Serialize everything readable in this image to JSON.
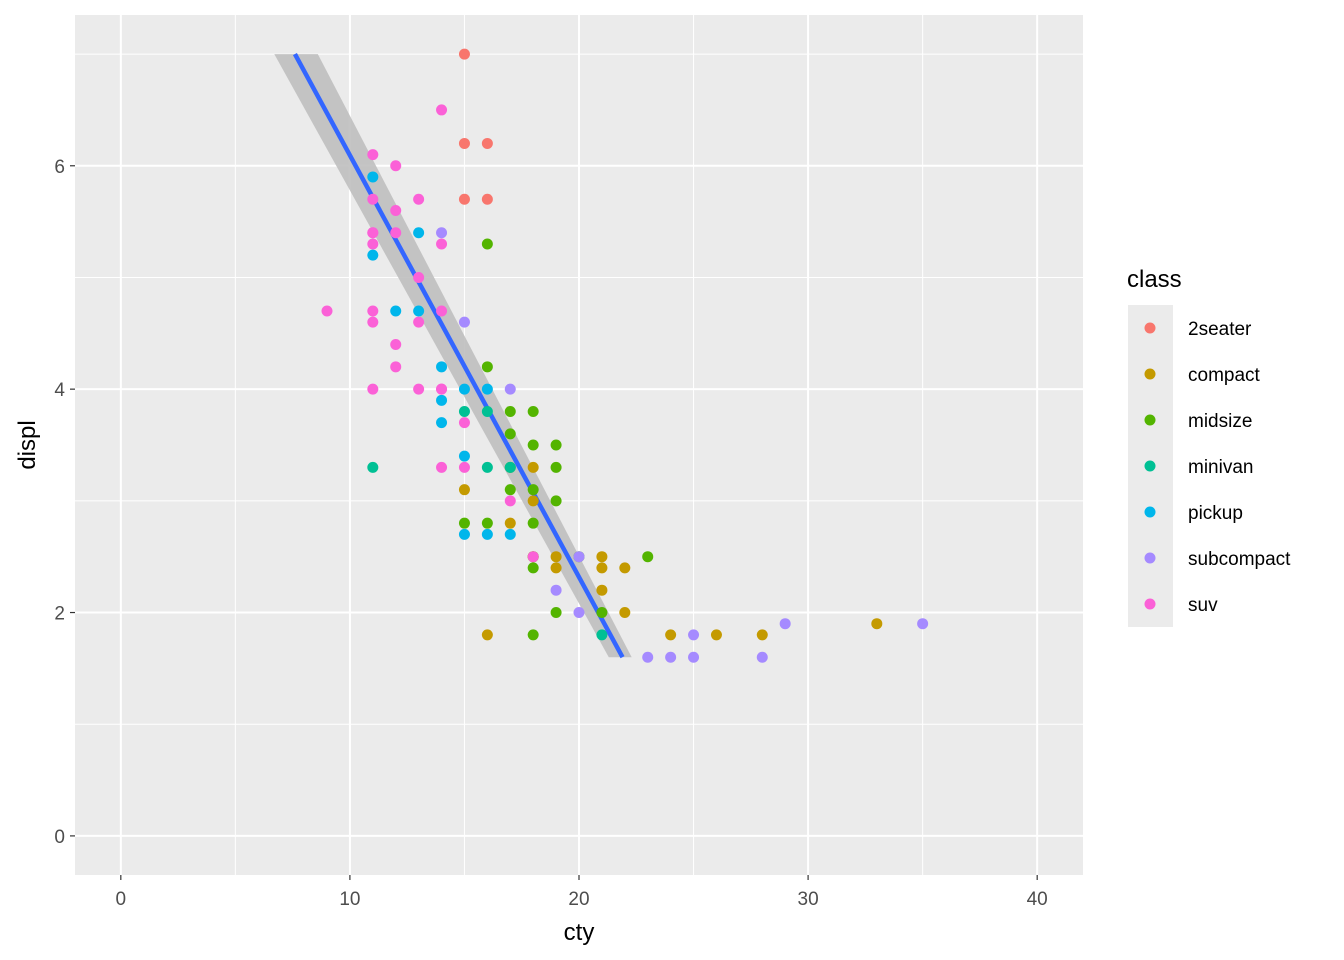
{
  "chart_data": {
    "type": "scatter",
    "xlabel": "cty",
    "ylabel": "displ",
    "xlim": [
      -2,
      42
    ],
    "ylim": [
      -0.35,
      7.35
    ],
    "x_ticks": [
      0,
      10,
      20,
      30,
      40
    ],
    "x_tick_labels": [
      "0",
      "10",
      "20",
      "30",
      "40"
    ],
    "y_ticks": [
      0,
      2,
      4,
      6
    ],
    "y_tick_labels": [
      "0",
      "2",
      "4",
      "6"
    ],
    "grid": true,
    "legend": {
      "title": "class",
      "position": "right",
      "entries": [
        "2seater",
        "compact",
        "midsize",
        "minivan",
        "pickup",
        "subcompact",
        "suv"
      ]
    },
    "series": [
      {
        "name": "2seater",
        "color": "#F8766D",
        "x": [
          15,
          15,
          16,
          15,
          16
        ],
        "y": [
          7.0,
          6.2,
          6.2,
          5.7,
          5.7
        ]
      },
      {
        "name": "compact",
        "color": "#C49A00",
        "x": [
          15,
          18,
          18,
          17,
          18,
          19,
          19,
          21,
          21,
          22,
          22,
          16,
          21,
          24,
          26,
          28,
          33
        ],
        "y": [
          3.1,
          3.0,
          3.3,
          2.8,
          2.5,
          2.5,
          2.4,
          2.5,
          2.4,
          2.4,
          2.0,
          1.8,
          2.2,
          1.8,
          1.8,
          1.8,
          1.9
        ]
      },
      {
        "name": "midsize",
        "color": "#53B400",
        "x": [
          16,
          16,
          17,
          18,
          17,
          18,
          19,
          17,
          18,
          19,
          19,
          17,
          18,
          15,
          16,
          18,
          19,
          18,
          20,
          21,
          23,
          18
        ],
        "y": [
          5.3,
          4.2,
          3.8,
          3.8,
          3.6,
          3.5,
          3.5,
          3.3,
          3.1,
          3.3,
          3.0,
          3.1,
          2.8,
          2.8,
          2.8,
          2.4,
          2.0,
          2.5,
          2.5,
          2.0,
          2.5,
          1.8
        ]
      },
      {
        "name": "minivan",
        "color": "#00C094",
        "x": [
          11,
          15,
          16,
          16,
          17,
          21
        ],
        "y": [
          3.3,
          3.8,
          3.8,
          3.3,
          3.3,
          1.8
        ]
      },
      {
        "name": "pickup",
        "color": "#00B6EB",
        "x": [
          11,
          11,
          12,
          13,
          13,
          14,
          14,
          14,
          15,
          15,
          15,
          16,
          16,
          17
        ],
        "y": [
          5.9,
          5.2,
          4.7,
          5.4,
          4.7,
          4.2,
          3.9,
          3.7,
          4.0,
          3.4,
          2.7,
          4.0,
          2.7,
          2.7
        ]
      },
      {
        "name": "subcompact",
        "color": "#A58AFF",
        "x": [
          14,
          15,
          17,
          19,
          20,
          20,
          23,
          24,
          25,
          25,
          28,
          29,
          35
        ],
        "y": [
          5.4,
          4.6,
          4.0,
          2.2,
          2.5,
          2.0,
          1.6,
          1.6,
          1.6,
          1.8,
          1.6,
          1.9,
          1.9
        ]
      },
      {
        "name": "suv",
        "color": "#FB61D7",
        "x": [
          9,
          11,
          11,
          11,
          11,
          11,
          11,
          11,
          11,
          12,
          12,
          12,
          12,
          12,
          13,
          13,
          13,
          13,
          14,
          14,
          14,
          14,
          14,
          14,
          15,
          15,
          17,
          18
        ],
        "y": [
          4.7,
          6.1,
          5.7,
          5.4,
          5.3,
          4.7,
          4.6,
          4.0,
          5.4,
          6.0,
          5.6,
          5.4,
          4.4,
          4.2,
          5.7,
          5.0,
          4.6,
          4.0,
          6.5,
          5.3,
          4.7,
          4.0,
          3.3,
          4.0,
          3.7,
          3.3,
          3.0,
          2.5
        ]
      }
    ],
    "smooth": {
      "color": "#3366FF",
      "band_color": "#BFBFBF",
      "x": [
        7.6,
        21.9
      ],
      "y": [
        7.0,
        1.6
      ],
      "se_x": [
        6.7,
        8.6,
        22.3,
        21.3
      ],
      "se_y": [
        7.0,
        7.0,
        1.6,
        1.6
      ]
    }
  }
}
